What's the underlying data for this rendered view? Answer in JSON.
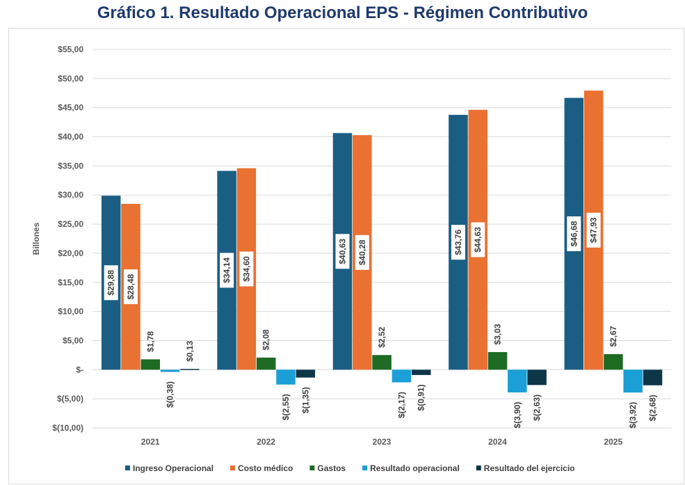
{
  "chart_data": {
    "type": "bar",
    "title": "Gráfico 1. Resultado Operacional EPS - Régimen Contributivo",
    "ylabel": "Billones",
    "xlabel": "",
    "ylim": [
      -10,
      55
    ],
    "yticks": [
      55,
      50,
      45,
      40,
      35,
      30,
      25,
      20,
      15,
      10,
      5,
      0,
      -5,
      -10
    ],
    "ytick_labels": [
      "$55,00",
      "$50,00",
      "$45,00",
      "$40,00",
      "$35,00",
      "$30,00",
      "$25,00",
      "$20,00",
      "$15,00",
      "$10,00",
      "$5,00",
      "$-",
      "$(5,00)",
      "$(10,00)"
    ],
    "grid": true,
    "legend": "bottom",
    "categories": [
      "2021",
      "2022",
      "2023",
      "2024",
      "2025"
    ],
    "series": [
      {
        "name": "Ingreso Operacional",
        "color": "#1B5E84",
        "values": [
          29.88,
          34.14,
          40.63,
          43.76,
          46.68
        ],
        "labels": [
          "$29,88",
          "$34,14",
          "$40,63",
          "$43,76",
          "$46,68"
        ]
      },
      {
        "name": "Costo médico",
        "color": "#E97132",
        "values": [
          28.48,
          34.6,
          40.28,
          44.63,
          47.93
        ],
        "labels": [
          "$28,48",
          "$34,60",
          "$40,28",
          "$44,63",
          "$47,93"
        ]
      },
      {
        "name": "Gastos",
        "color": "#1E6B24",
        "values": [
          1.78,
          2.08,
          2.52,
          3.03,
          2.67
        ],
        "labels": [
          "$1,78",
          "$2,08",
          "$2,52",
          "$3,03",
          "$2,67"
        ]
      },
      {
        "name": "Resultado operacional",
        "color": "#1A9FD6",
        "values": [
          -0.38,
          -2.55,
          -2.17,
          -3.9,
          -3.92
        ],
        "labels": [
          "$(0,38)",
          "$(2,55)",
          "$(2,17)",
          "$(3,90)",
          "$(3,92)"
        ]
      },
      {
        "name": "Resultado del ejercicio",
        "color": "#0E3649",
        "values": [
          0.13,
          -1.35,
          -0.91,
          -2.63,
          -2.68
        ],
        "labels": [
          "$0,13",
          "$(1,35)",
          "$(0,91)",
          "$(2,63)",
          "$(2,68)"
        ]
      }
    ]
  }
}
